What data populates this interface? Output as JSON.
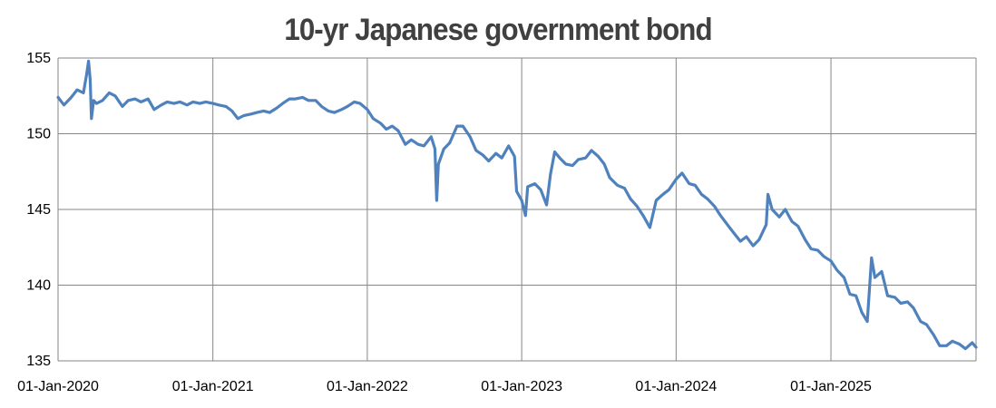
{
  "chart_data": {
    "type": "line",
    "title": "10-yr Japanese government bond",
    "xlabel": "",
    "ylabel": "",
    "ylim": [
      135,
      155
    ],
    "y_ticks": [
      "135",
      "140",
      "145",
      "150",
      "155"
    ],
    "x_ticks": [
      "01-Jan-2020",
      "01-Jan-2021",
      "01-Jan-2022",
      "01-Jan-2023",
      "01-Jan-2024",
      "01-Jan-2025"
    ],
    "grid": true,
    "legend": "none",
    "series": [
      {
        "color": "#4f81bd",
        "points": [
          [
            "2020-01-01",
            152.4
          ],
          [
            "2020-01-15",
            151.9
          ],
          [
            "2020-02-01",
            152.4
          ],
          [
            "2020-02-15",
            152.9
          ],
          [
            "2020-03-01",
            152.7
          ],
          [
            "2020-03-09",
            154.0
          ],
          [
            "2020-03-13",
            154.8
          ],
          [
            "2020-03-17",
            153.6
          ],
          [
            "2020-03-20",
            151.0
          ],
          [
            "2020-03-25",
            152.2
          ],
          [
            "2020-04-01",
            152.0
          ],
          [
            "2020-04-15",
            152.2
          ],
          [
            "2020-05-01",
            152.7
          ],
          [
            "2020-05-15",
            152.5
          ],
          [
            "2020-06-01",
            151.8
          ],
          [
            "2020-06-15",
            152.2
          ],
          [
            "2020-07-01",
            152.3
          ],
          [
            "2020-07-15",
            152.1
          ],
          [
            "2020-08-01",
            152.3
          ],
          [
            "2020-08-15",
            151.6
          ],
          [
            "2020-09-01",
            151.9
          ],
          [
            "2020-09-15",
            152.1
          ],
          [
            "2020-10-01",
            152.0
          ],
          [
            "2020-10-15",
            152.1
          ],
          [
            "2020-11-01",
            151.9
          ],
          [
            "2020-11-15",
            152.1
          ],
          [
            "2020-12-01",
            152.0
          ],
          [
            "2020-12-15",
            152.1
          ],
          [
            "2021-01-01",
            152.0
          ],
          [
            "2021-01-15",
            151.9
          ],
          [
            "2021-02-01",
            151.8
          ],
          [
            "2021-02-15",
            151.5
          ],
          [
            "2021-03-01",
            151.0
          ],
          [
            "2021-03-15",
            151.2
          ],
          [
            "2021-04-01",
            151.3
          ],
          [
            "2021-04-15",
            151.4
          ],
          [
            "2021-05-01",
            151.5
          ],
          [
            "2021-05-15",
            151.4
          ],
          [
            "2021-06-01",
            151.7
          ],
          [
            "2021-06-15",
            152.0
          ],
          [
            "2021-07-01",
            152.3
          ],
          [
            "2021-07-15",
            152.3
          ],
          [
            "2021-08-01",
            152.4
          ],
          [
            "2021-08-15",
            152.2
          ],
          [
            "2021-09-01",
            152.2
          ],
          [
            "2021-09-15",
            151.8
          ],
          [
            "2021-10-01",
            151.5
          ],
          [
            "2021-10-15",
            151.4
          ],
          [
            "2021-11-01",
            151.6
          ],
          [
            "2021-11-15",
            151.8
          ],
          [
            "2021-12-01",
            152.1
          ],
          [
            "2021-12-15",
            152.0
          ],
          [
            "2022-01-01",
            151.6
          ],
          [
            "2022-01-15",
            151.0
          ],
          [
            "2022-02-01",
            150.7
          ],
          [
            "2022-02-15",
            150.3
          ],
          [
            "2022-03-01",
            150.5
          ],
          [
            "2022-03-15",
            150.2
          ],
          [
            "2022-04-01",
            149.3
          ],
          [
            "2022-04-15",
            149.6
          ],
          [
            "2022-05-01",
            149.3
          ],
          [
            "2022-05-15",
            149.2
          ],
          [
            "2022-06-01",
            149.8
          ],
          [
            "2022-06-10",
            149.0
          ],
          [
            "2022-06-14",
            145.6
          ],
          [
            "2022-06-18",
            148.0
          ],
          [
            "2022-07-01",
            149.0
          ],
          [
            "2022-07-15",
            149.4
          ],
          [
            "2022-08-01",
            150.5
          ],
          [
            "2022-08-15",
            150.5
          ],
          [
            "2022-09-01",
            149.8
          ],
          [
            "2022-09-15",
            148.9
          ],
          [
            "2022-10-01",
            148.6
          ],
          [
            "2022-10-15",
            148.2
          ],
          [
            "2022-11-01",
            148.7
          ],
          [
            "2022-11-15",
            148.4
          ],
          [
            "2022-12-01",
            149.2
          ],
          [
            "2022-12-15",
            148.5
          ],
          [
            "2022-12-20",
            146.2
          ],
          [
            "2023-01-01",
            145.6
          ],
          [
            "2023-01-10",
            144.6
          ],
          [
            "2023-01-15",
            146.5
          ],
          [
            "2023-02-01",
            146.7
          ],
          [
            "2023-02-15",
            146.3
          ],
          [
            "2023-03-01",
            145.3
          ],
          [
            "2023-03-10",
            147.3
          ],
          [
            "2023-03-20",
            148.8
          ],
          [
            "2023-04-01",
            148.4
          ],
          [
            "2023-04-15",
            148.0
          ],
          [
            "2023-05-01",
            147.9
          ],
          [
            "2023-05-15",
            148.3
          ],
          [
            "2023-06-01",
            148.4
          ],
          [
            "2023-06-15",
            148.9
          ],
          [
            "2023-07-01",
            148.5
          ],
          [
            "2023-07-15",
            148.0
          ],
          [
            "2023-07-28",
            147.1
          ],
          [
            "2023-08-15",
            146.6
          ],
          [
            "2023-09-01",
            146.4
          ],
          [
            "2023-09-15",
            145.7
          ],
          [
            "2023-10-01",
            145.2
          ],
          [
            "2023-10-15",
            144.6
          ],
          [
            "2023-10-31",
            143.8
          ],
          [
            "2023-11-15",
            145.6
          ],
          [
            "2023-12-01",
            146.0
          ],
          [
            "2023-12-15",
            146.3
          ],
          [
            "2024-01-01",
            147.0
          ],
          [
            "2024-01-15",
            147.4
          ],
          [
            "2024-02-01",
            146.7
          ],
          [
            "2024-02-15",
            146.6
          ],
          [
            "2024-03-01",
            146.0
          ],
          [
            "2024-03-15",
            145.7
          ],
          [
            "2024-04-01",
            145.2
          ],
          [
            "2024-04-15",
            144.6
          ],
          [
            "2024-05-01",
            144.0
          ],
          [
            "2024-05-15",
            143.5
          ],
          [
            "2024-06-01",
            142.9
          ],
          [
            "2024-06-15",
            143.2
          ],
          [
            "2024-07-01",
            142.6
          ],
          [
            "2024-07-15",
            143.0
          ],
          [
            "2024-08-01",
            144.0
          ],
          [
            "2024-08-05",
            146.0
          ],
          [
            "2024-08-15",
            145.0
          ],
          [
            "2024-09-01",
            144.5
          ],
          [
            "2024-09-15",
            145.0
          ],
          [
            "2024-10-01",
            144.2
          ],
          [
            "2024-10-15",
            143.9
          ],
          [
            "2024-11-01",
            143.0
          ],
          [
            "2024-11-15",
            142.4
          ],
          [
            "2024-12-01",
            142.3
          ],
          [
            "2024-12-15",
            141.9
          ],
          [
            "2025-01-01",
            141.6
          ],
          [
            "2025-01-15",
            141.0
          ],
          [
            "2025-02-01",
            140.5
          ],
          [
            "2025-02-15",
            139.4
          ],
          [
            "2025-03-01",
            139.3
          ],
          [
            "2025-03-15",
            138.2
          ],
          [
            "2025-03-28",
            137.6
          ],
          [
            "2025-04-07",
            141.8
          ],
          [
            "2025-04-15",
            140.5
          ],
          [
            "2025-05-01",
            140.9
          ],
          [
            "2025-05-15",
            139.3
          ],
          [
            "2025-06-01",
            139.2
          ],
          [
            "2025-06-15",
            138.8
          ],
          [
            "2025-07-01",
            138.9
          ],
          [
            "2025-07-15",
            138.5
          ],
          [
            "2025-08-01",
            137.6
          ],
          [
            "2025-08-15",
            137.4
          ],
          [
            "2025-09-01",
            136.7
          ],
          [
            "2025-09-15",
            136.0
          ],
          [
            "2025-10-01",
            136.0
          ],
          [
            "2025-10-15",
            136.3
          ],
          [
            "2025-11-01",
            136.1
          ],
          [
            "2025-11-15",
            135.8
          ],
          [
            "2025-12-01",
            136.2
          ],
          [
            "2025-12-10",
            135.9
          ]
        ]
      }
    ]
  }
}
